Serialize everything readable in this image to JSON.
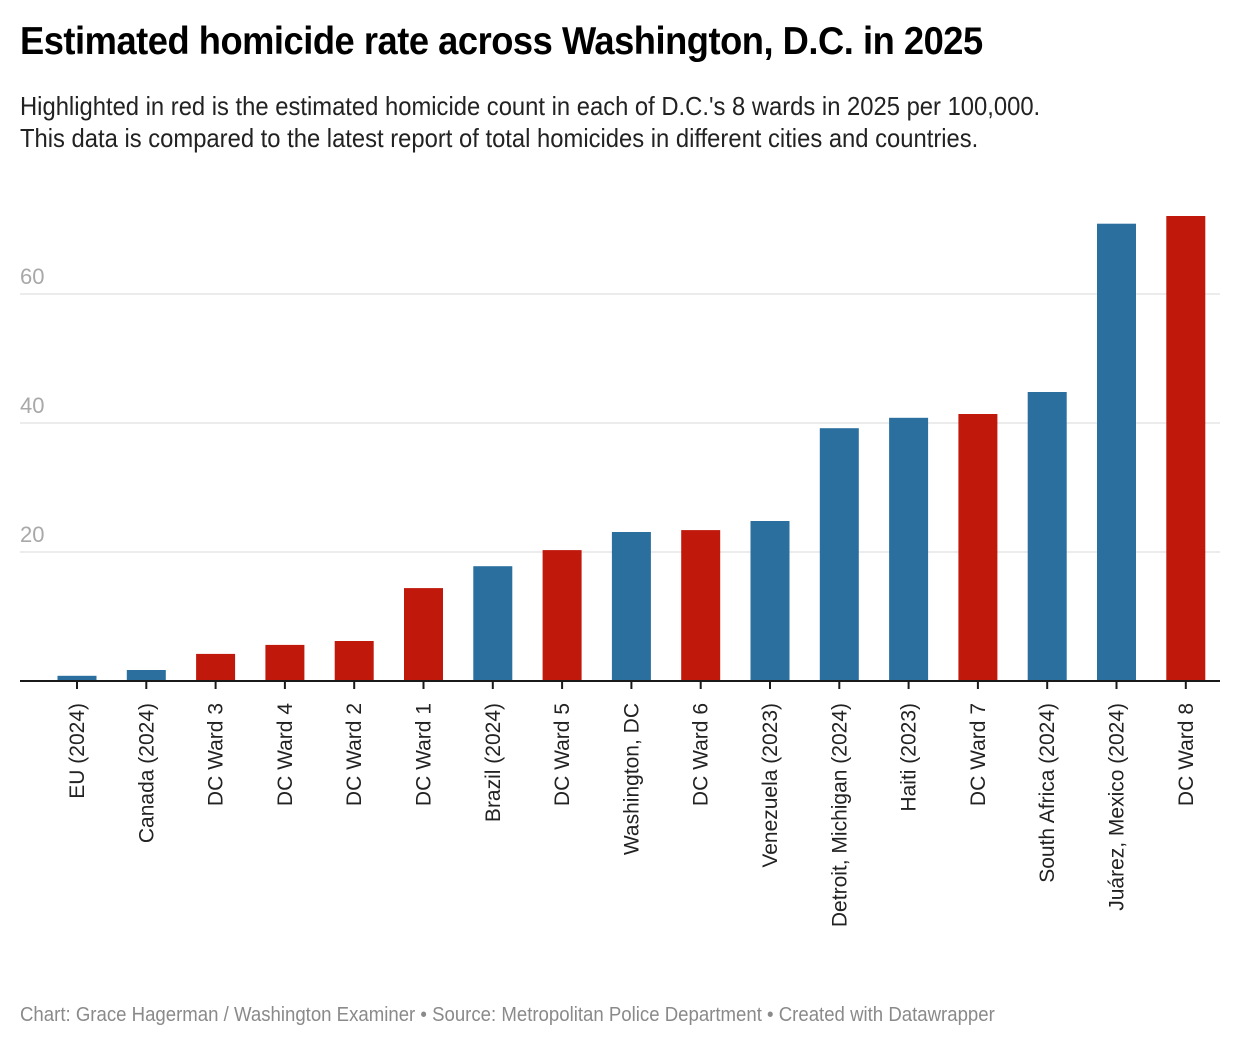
{
  "header": {
    "title": "Estimated homicide rate across Washington, D.C. in 2025",
    "subtitle_lines": [
      "Highlighted in red is the estimated homicide count in each of D.C.'s 8 wards in 2025 per 100,000.",
      "This data is compared to the latest report of total homicides in different cities and countries."
    ]
  },
  "footer": {
    "text": "Chart: Grace Hagerman / Washington Examiner • Source: Metropolitan Police Department • Created with Datawrapper"
  },
  "colors": {
    "highlight": "#c0190c",
    "comparison": "#2b6f9e",
    "gridline": "#e5e5e5",
    "axis": "#1a1a1a",
    "tick_label": "#a8a8a8"
  },
  "chart_data": {
    "type": "bar",
    "title": "Estimated homicide rate across Washington, D.C. in 2025",
    "xlabel": "",
    "ylabel": "",
    "ylim": [
      0,
      72
    ],
    "yticks": [
      20,
      40,
      60
    ],
    "grid": true,
    "legend": "none (red = DC wards, blue = comparison)",
    "categories": [
      "EU (2024)",
      "Canada (2024)",
      "DC Ward 3",
      "DC Ward 4",
      "DC Ward 2",
      "DC Ward 1",
      "Brazil (2024)",
      "DC Ward 5",
      "Washington, DC",
      "DC Ward 6",
      "Venezuela (2023)",
      "Detroit, Michigan (2024)",
      "Haiti (2023)",
      "DC Ward 7",
      "South Africa (2024)",
      "Juárez, Mexico (2024)",
      "DC Ward 8"
    ],
    "values": [
      0.8,
      1.7,
      4.2,
      5.6,
      6.2,
      14.4,
      17.8,
      20.3,
      23.1,
      23.4,
      24.8,
      39.2,
      40.8,
      41.4,
      44.8,
      70.9,
      72.1
    ],
    "groups": [
      "comparison",
      "comparison",
      "dc_ward",
      "dc_ward",
      "dc_ward",
      "dc_ward",
      "comparison",
      "dc_ward",
      "comparison",
      "dc_ward",
      "comparison",
      "comparison",
      "comparison",
      "dc_ward",
      "comparison",
      "comparison",
      "dc_ward"
    ]
  }
}
